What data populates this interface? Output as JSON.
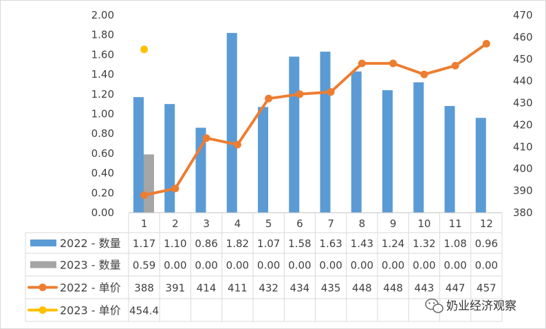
{
  "chart_data": {
    "type": "bar",
    "categories": [
      "1",
      "2",
      "3",
      "4",
      "5",
      "6",
      "7",
      "8",
      "9",
      "10",
      "11",
      "12"
    ],
    "y_left": {
      "ylim": [
        0,
        2.0
      ],
      "ticks": [
        "0.00",
        "0.20",
        "0.40",
        "0.60",
        "0.80",
        "1.00",
        "1.20",
        "1.40",
        "1.60",
        "1.80",
        "2.00"
      ]
    },
    "y_right": {
      "ylim": [
        380,
        470
      ],
      "ticks": [
        "380",
        "390",
        "400",
        "410",
        "420",
        "430",
        "440",
        "450",
        "460",
        "470"
      ]
    },
    "series": [
      {
        "name": "2022 - 数量",
        "kind": "bar",
        "axis": "left",
        "color": "#5b9bd5",
        "values": [
          1.17,
          1.1,
          0.86,
          1.82,
          1.07,
          1.58,
          1.63,
          1.43,
          1.24,
          1.32,
          1.08,
          0.96
        ],
        "labels": [
          "1.17",
          "1.10",
          "0.86",
          "1.82",
          "1.07",
          "1.58",
          "1.63",
          "1.43",
          "1.24",
          "1.32",
          "1.08",
          "0.96"
        ]
      },
      {
        "name": "2023 - 数量",
        "kind": "bar",
        "axis": "left",
        "color": "#a5a5a5",
        "values": [
          0.59,
          0.0,
          0.0,
          0.0,
          0.0,
          0.0,
          0.0,
          0.0,
          0.0,
          0.0,
          0.0,
          0.0
        ],
        "labels": [
          "0.59",
          "0.00",
          "0.00",
          "0.00",
          "0.00",
          "0.00",
          "0.00",
          "0.00",
          "0.00",
          "0.00",
          "0.00",
          "0.00"
        ]
      },
      {
        "name": "2022 - 单价",
        "kind": "line",
        "axis": "right",
        "color": "#ed7d31",
        "values": [
          388,
          391,
          414,
          411,
          432,
          434,
          435,
          448,
          448,
          443,
          447,
          457
        ],
        "labels": [
          "388",
          "391",
          "414",
          "411",
          "432",
          "434",
          "435",
          "448",
          "448",
          "443",
          "447",
          "457"
        ]
      },
      {
        "name": "2023 - 单价",
        "kind": "line",
        "axis": "right",
        "color": "#ffc000",
        "values": [
          454.4,
          null,
          null,
          null,
          null,
          null,
          null,
          null,
          null,
          null,
          null,
          null
        ],
        "labels": [
          "454.4",
          "",
          "",
          "",
          "",
          "",
          "",
          "",
          "",
          "",
          "",
          ""
        ]
      }
    ],
    "grid": false,
    "legend": "data table"
  },
  "watermark": {
    "text": "奶业经济观察",
    "icon": "wechat-icon"
  }
}
